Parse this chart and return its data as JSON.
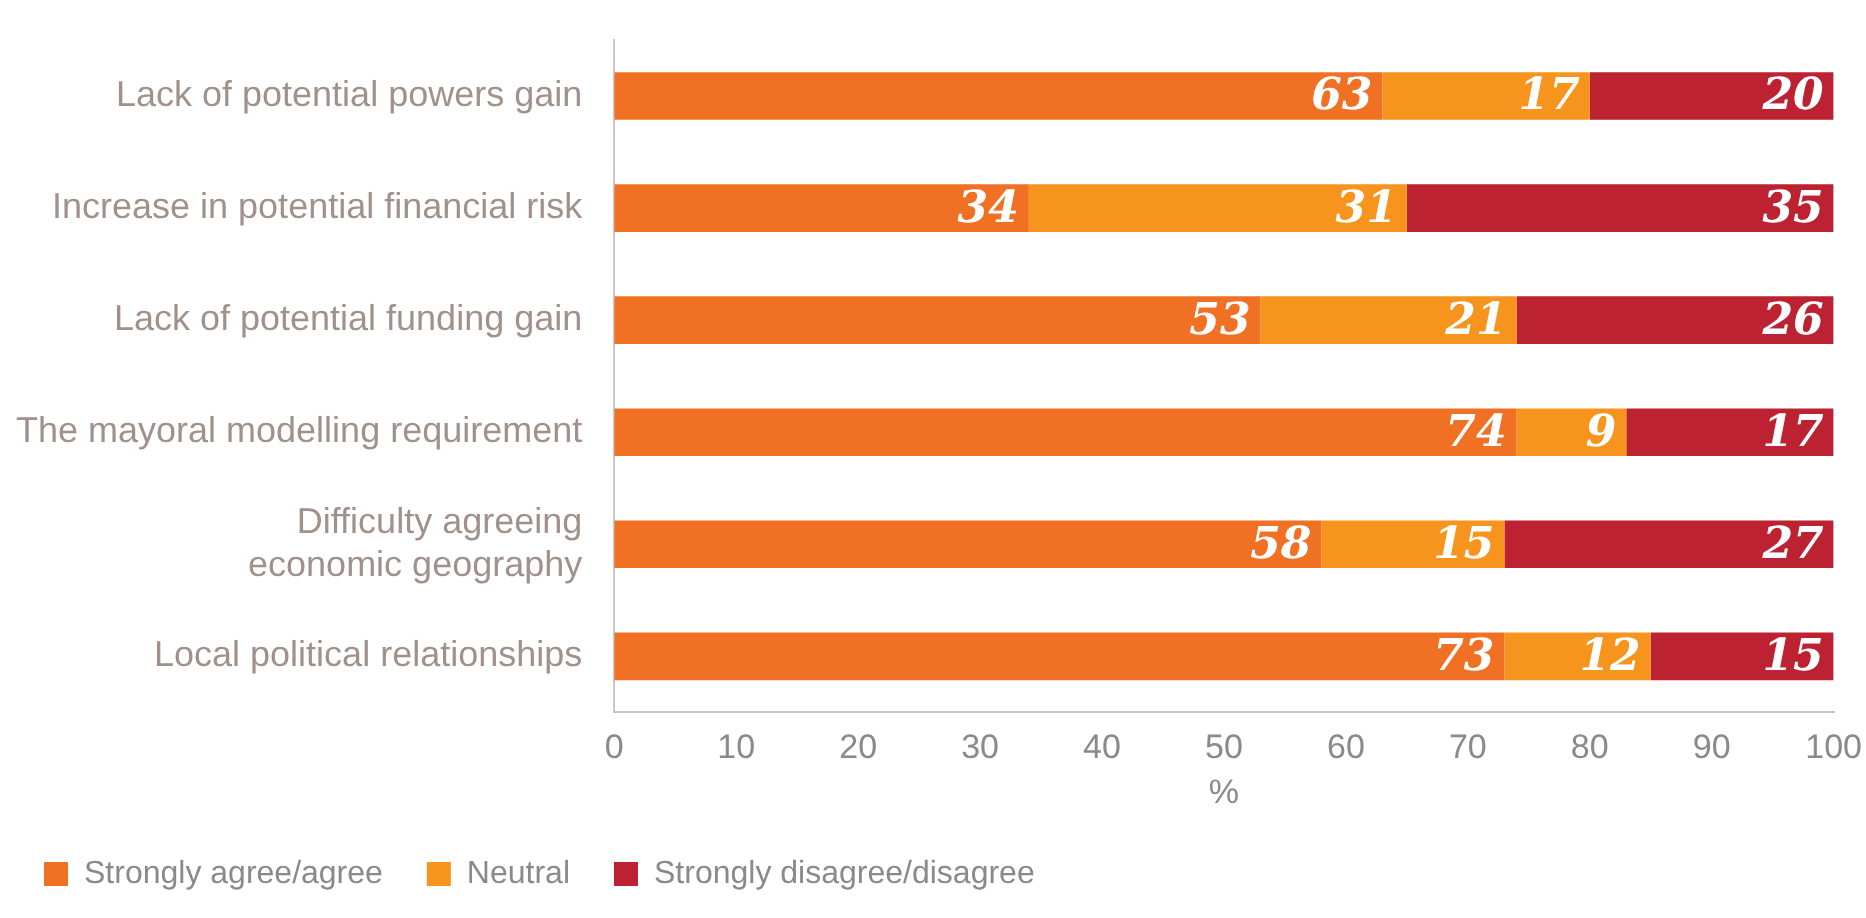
{
  "chart_data": {
    "type": "bar",
    "orientation": "horizontal",
    "stacked": true,
    "xlabel": "%",
    "categories": [
      "Lack of potential powers gain",
      "Increase in potential financial risk",
      "Lack of potential funding gain",
      "The mayoral modelling requirement",
      "Difficulty agreeing\neconomic geography",
      "Local political relationships"
    ],
    "series": [
      {
        "name": "Strongly agree/agree",
        "color": "#f07024",
        "values": [
          63,
          34,
          53,
          74,
          58,
          73
        ]
      },
      {
        "name": "Neutral",
        "color": "#f7941d",
        "values": [
          17,
          31,
          21,
          9,
          15,
          12
        ]
      },
      {
        "name": "Strongly disagree/disagree",
        "color": "#bc2232",
        "values": [
          20,
          35,
          26,
          17,
          27,
          15
        ]
      }
    ],
    "xlim": [
      0,
      100
    ],
    "xticks": [
      0,
      10,
      20,
      30,
      40,
      50,
      60,
      70,
      80,
      90,
      100
    ],
    "grid": false,
    "legend": "bottom",
    "data_labels": true
  }
}
